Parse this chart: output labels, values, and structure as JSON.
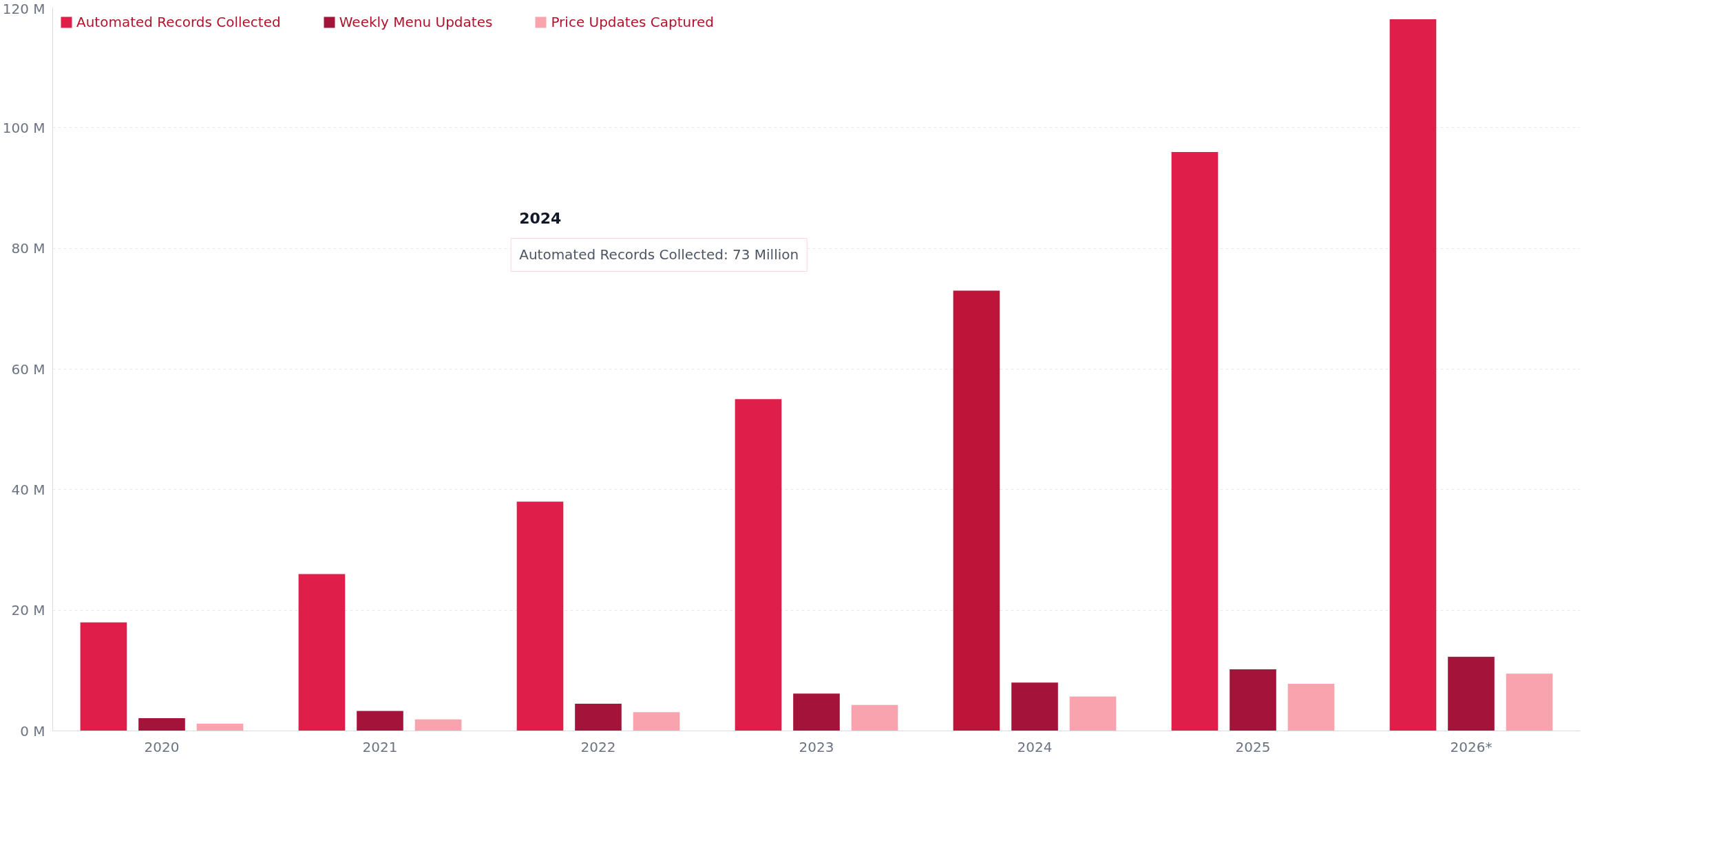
{
  "chart_data": {
    "type": "bar",
    "categories": [
      "2020",
      "2021",
      "2022",
      "2023",
      "2024",
      "2025",
      "2026*"
    ],
    "series": [
      {
        "name": "Automated Records Collected",
        "color": "#e01e4a",
        "colors": [
          "#e01e4a",
          "#e01e4a",
          "#e01e4a",
          "#e01e4a",
          "#be1439",
          "#e01e4a",
          "#e01e4a"
        ],
        "values": [
          18,
          26,
          38,
          55,
          73,
          96,
          118
        ]
      },
      {
        "name": "Weekly Menu Updates",
        "color": "#a3133a",
        "values": [
          2.1,
          3.3,
          4.5,
          6.2,
          8,
          10.2,
          12.3
        ]
      },
      {
        "name": "Price Updates Captured",
        "color": "#f9a3ae",
        "values": [
          1.2,
          1.9,
          3.1,
          4.3,
          5.7,
          7.8,
          9.5
        ]
      }
    ],
    "ylim": [
      0,
      120
    ],
    "yticks": [
      {
        "value": 0,
        "label": "0 M"
      },
      {
        "value": 20,
        "label": "20 M"
      },
      {
        "value": 40,
        "label": "40 M"
      },
      {
        "value": 60,
        "label": "60 M"
      },
      {
        "value": 80,
        "label": "80 M"
      },
      {
        "value": 100,
        "label": "100 M"
      },
      {
        "value": 120,
        "label": "120 M"
      }
    ],
    "grid": "y",
    "legend": "top",
    "annotations": [
      "2024",
      "Automated Records Collected: 73 Million"
    ]
  }
}
